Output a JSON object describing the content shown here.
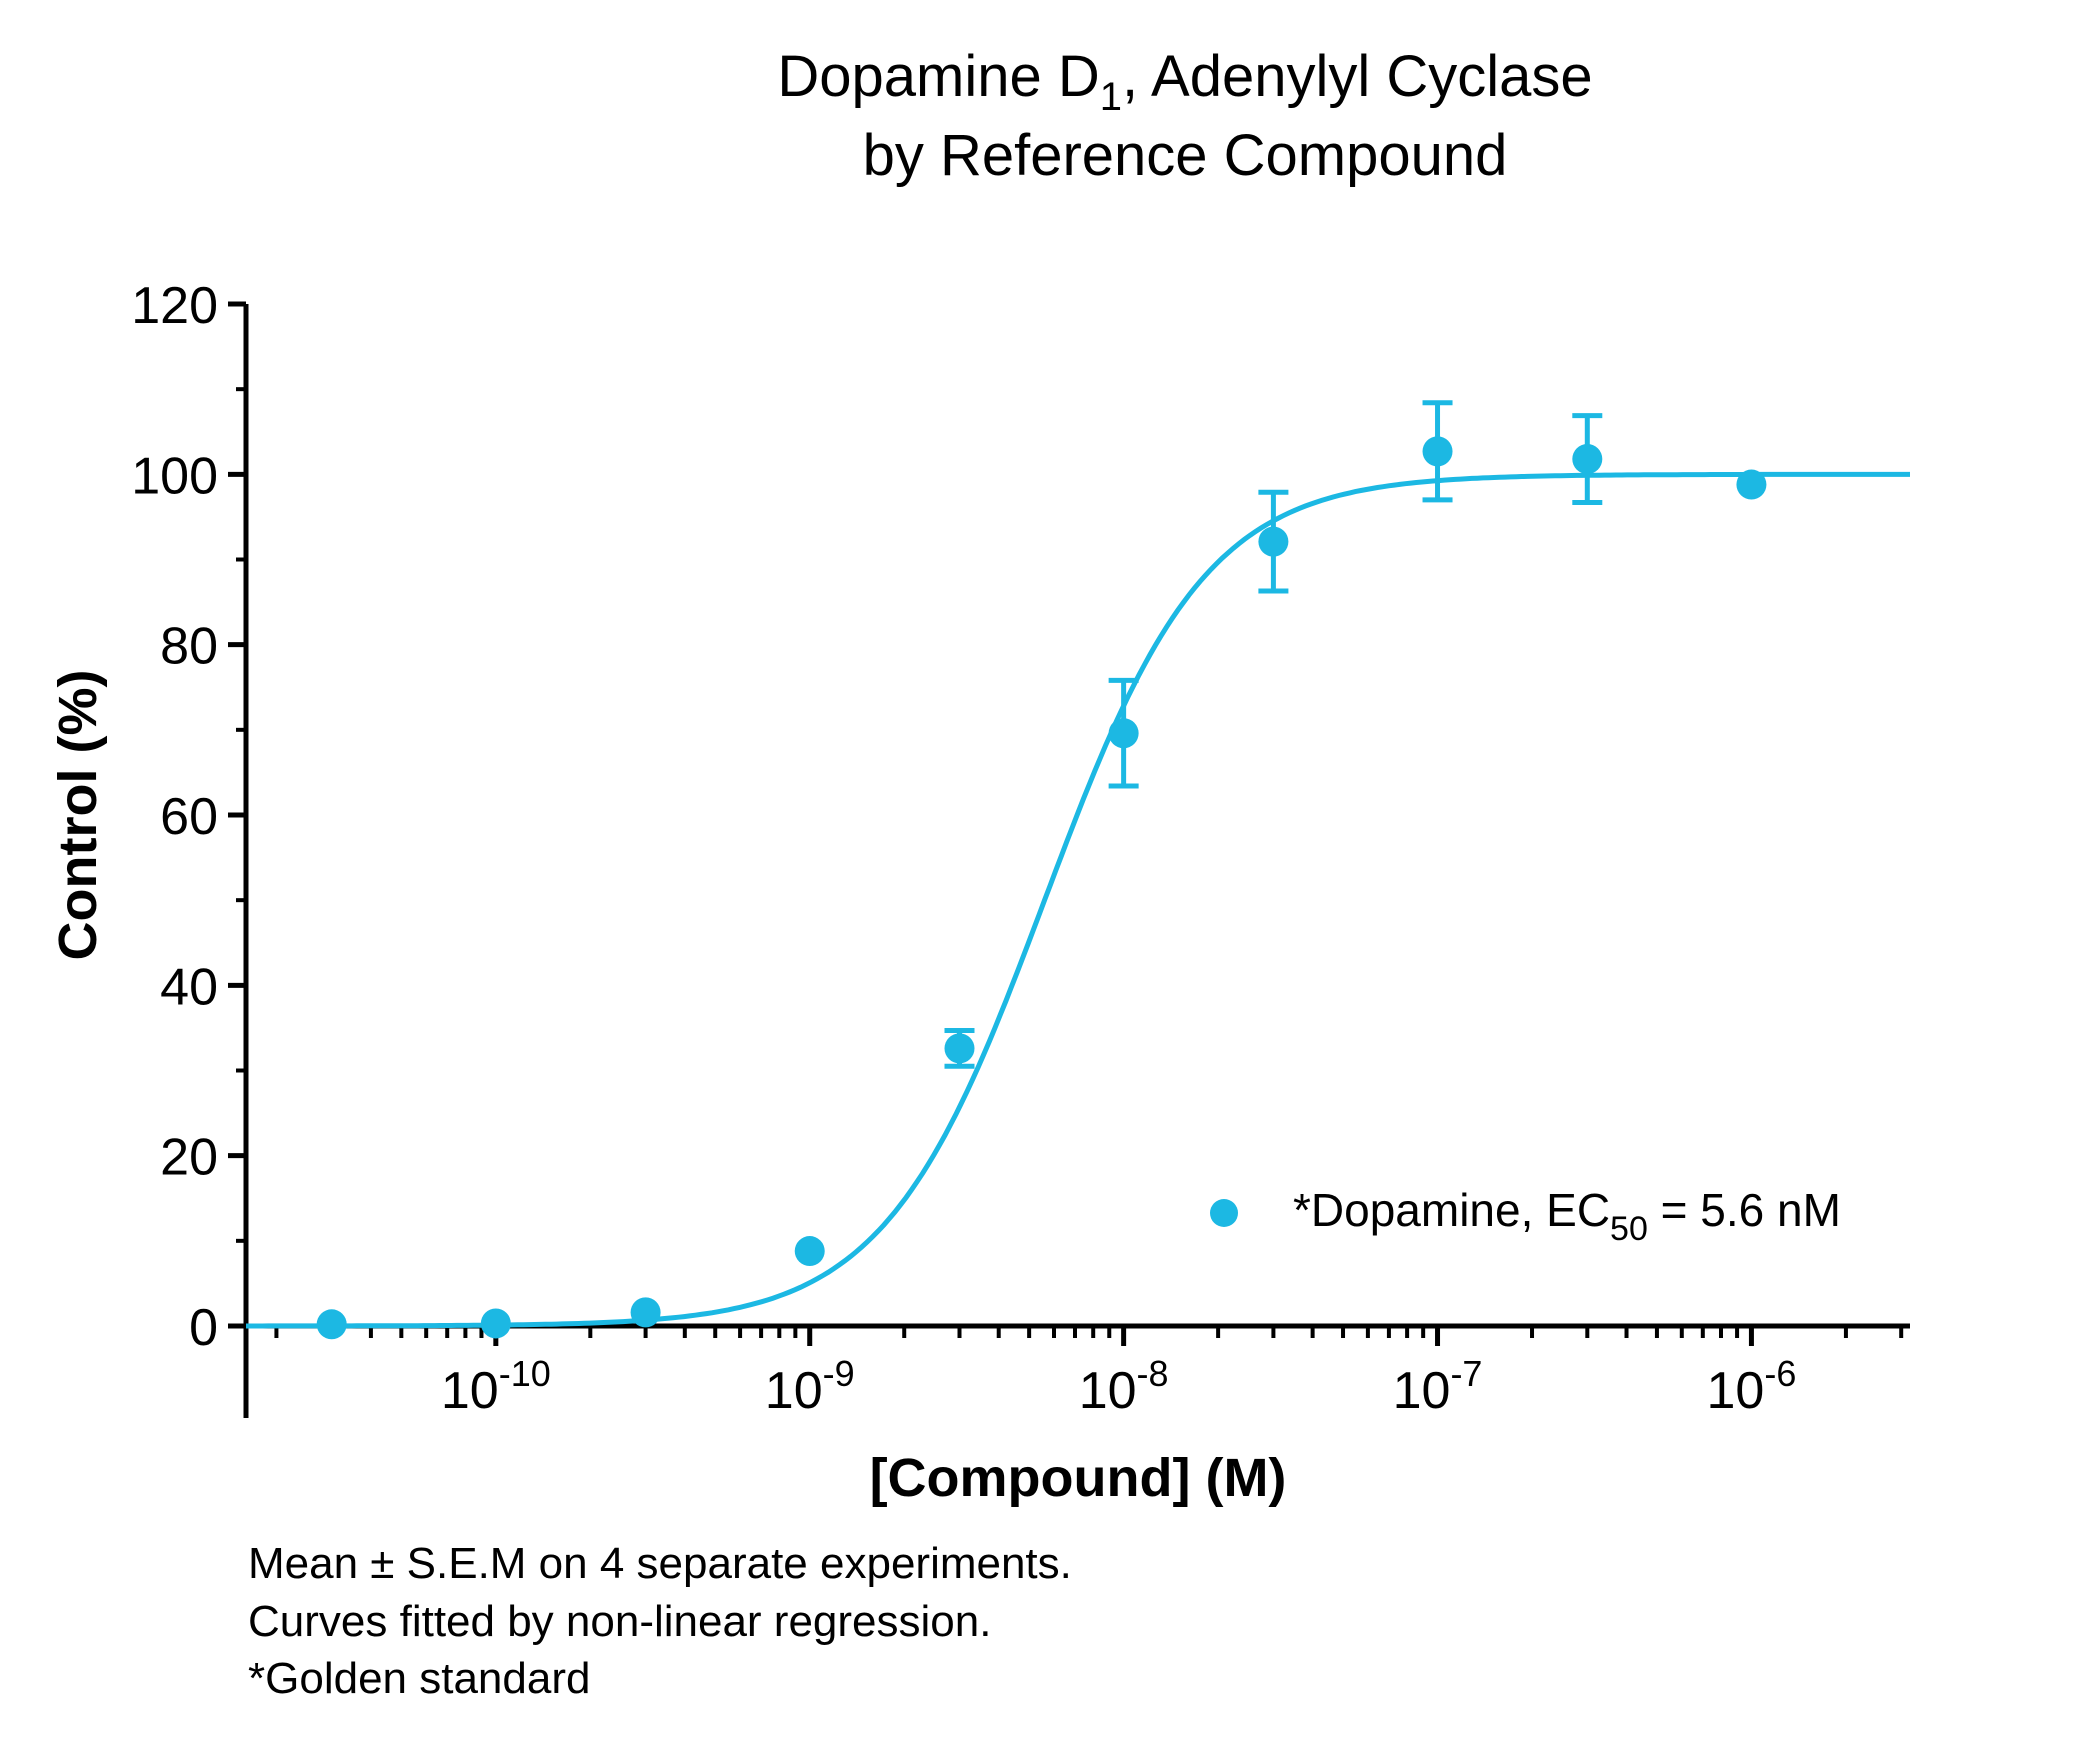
{
  "chart_data": {
    "type": "scatter",
    "title": {
      "line1_main": "Dopamine D",
      "line1_sub": "1",
      "line1_rest": ", Adenylyl Cyclase",
      "line2": "by Reference Compound"
    },
    "xlabel": "[Compound] (M)",
    "ylabel": "Control (%)",
    "x_scale": "log",
    "xlim": [
      1.6e-11,
      3.2e-06
    ],
    "ylim": [
      0,
      120
    ],
    "y_ticks": [
      0,
      20,
      40,
      60,
      80,
      100,
      120
    ],
    "x_ticks": [
      {
        "value": 1e-10,
        "base": "10",
        "exp": "-10"
      },
      {
        "value": 1e-09,
        "base": "10",
        "exp": "-9"
      },
      {
        "value": 1e-08,
        "base": "10",
        "exp": "-8"
      },
      {
        "value": 1e-07,
        "base": "10",
        "exp": "-7"
      },
      {
        "value": 1e-06,
        "base": "10",
        "exp": "-6"
      }
    ],
    "series": [
      {
        "name": "*Dopamine",
        "color": "#1cb8e3",
        "points": [
          {
            "x": 3e-11,
            "y": 0.2,
            "err": 0
          },
          {
            "x": 1e-10,
            "y": 0.3,
            "err": 0
          },
          {
            "x": 3e-10,
            "y": 1.6,
            "err": 0
          },
          {
            "x": 1e-09,
            "y": 8.8,
            "err": 0
          },
          {
            "x": 3e-09,
            "y": 32.6,
            "err": 2.1
          },
          {
            "x": 1e-08,
            "y": 69.6,
            "err": 6.2
          },
          {
            "x": 3e-08,
            "y": 92.1,
            "err": 5.8
          },
          {
            "x": 1e-07,
            "y": 102.7,
            "err": 5.7
          },
          {
            "x": 3e-07,
            "y": 101.8,
            "err": 5.1
          },
          {
            "x": 1e-06,
            "y": 98.8,
            "err": 0
          }
        ],
        "fit": {
          "bottom": 0,
          "top": 100,
          "ec50": 5.6e-09,
          "hill": 1.7
        }
      }
    ],
    "legend": {
      "position": "bottom-right",
      "label_main": "*Dopamine, EC",
      "label_sub": "50",
      "label_rest": " = 5.6 nM"
    },
    "notes": [
      "Mean ± S.E.M on 4 separate experiments.",
      "Curves fitted by non-linear regression.",
      "*Golden standard"
    ]
  }
}
